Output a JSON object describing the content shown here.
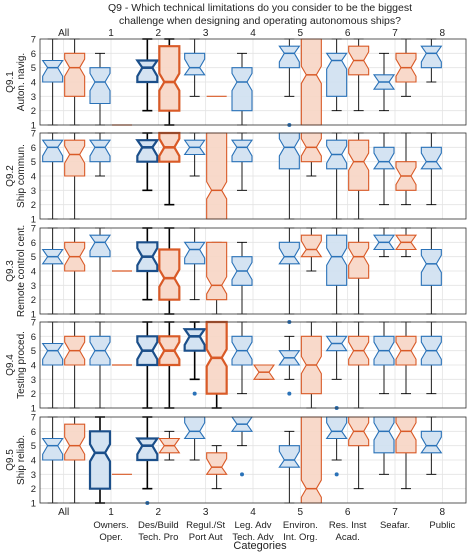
{
  "chart_data": {
    "type": "boxplot",
    "title": "Q9 - Which technical limitations do you consider to be the biggest\nchallenge when designing and operating autonomous ships?",
    "xlabel": "Categories",
    "ylim": [
      1,
      7
    ],
    "yticks": [
      1,
      2,
      3,
      4,
      5,
      6,
      7
    ],
    "grid": true,
    "categories": [
      {
        "top": "All",
        "num": "",
        "sub1": "",
        "sub2": ""
      },
      {
        "top": "1",
        "num": "1",
        "sub1": "Owners.",
        "sub2": "Oper."
      },
      {
        "top": "2",
        "num": "2",
        "sub1": "Des/Build",
        "sub2": "Tech. Pro"
      },
      {
        "top": "3",
        "num": "3",
        "sub1": "Regul./St",
        "sub2": "Port Aut"
      },
      {
        "top": "4",
        "num": "4",
        "sub1": "Leg. Adv",
        "sub2": "Tech. Adv"
      },
      {
        "top": "5",
        "num": "5",
        "sub1": "Environ.",
        "sub2": "Int. Org."
      },
      {
        "top": "6",
        "num": "6",
        "sub1": "Res. Inst",
        "sub2": "Acad."
      },
      {
        "top": "7",
        "num": "7",
        "sub1": "Seafar.",
        "sub2": ""
      },
      {
        "top": "8",
        "num": "8",
        "sub1": "Public",
        "sub2": ""
      }
    ],
    "series_colors": {
      "blue": "#2a72b8",
      "blue_fill": "#cfe0f1",
      "orange": "#d95a27",
      "orange_fill": "#f7d5c4",
      "dark_blue": "#1b4f8a"
    },
    "panels": [
      {
        "ylabel": "Q9.1\nAuton. navig.",
        "boxes": [
          {
            "cat": 0,
            "side": "blue",
            "q1": 4,
            "med": 5,
            "q3": 5.5,
            "lo": 1,
            "hi": 7,
            "out": []
          },
          {
            "cat": 0,
            "side": "orange",
            "q1": 3,
            "med": 5,
            "q3": 6,
            "lo": 1,
            "hi": 7,
            "out": []
          },
          {
            "cat": 1,
            "side": "blue",
            "q1": 2.5,
            "med": 4,
            "q3": 5,
            "lo": 1,
            "hi": 6,
            "out": []
          },
          {
            "cat": 1,
            "side": "orange",
            "line": 1
          },
          {
            "cat": 2,
            "side": "blue",
            "q1": 4,
            "med": 5,
            "q3": 5.5,
            "lo": 2,
            "hi": 7,
            "out": [],
            "bold": true
          },
          {
            "cat": 2,
            "side": "orange",
            "q1": 2,
            "med": 4,
            "q3": 6.5,
            "lo": 1,
            "hi": 7,
            "out": [],
            "bold": true
          },
          {
            "cat": 3,
            "side": "blue",
            "q1": 4.5,
            "med": 5,
            "q3": 6,
            "lo": 3,
            "hi": 7,
            "out": []
          },
          {
            "cat": 3,
            "side": "orange",
            "line": 3
          },
          {
            "cat": 4,
            "side": "blue",
            "q1": 2,
            "med": 4,
            "q3": 5,
            "lo": 1,
            "hi": 6,
            "out": []
          },
          {
            "cat": 5,
            "side": "blue",
            "q1": 5,
            "med": 6,
            "q3": 6.5,
            "lo": 3,
            "hi": 7,
            "out": [
              1
            ]
          },
          {
            "cat": 5,
            "side": "orange",
            "q1": 1,
            "med": 4.5,
            "q3": 7,
            "lo": 1,
            "hi": 7,
            "out": []
          },
          {
            "cat": 6,
            "side": "blue",
            "q1": 3,
            "med": 5.5,
            "q3": 6,
            "lo": 2,
            "hi": 7,
            "out": []
          },
          {
            "cat": 6,
            "side": "orange",
            "q1": 4.5,
            "med": 5.5,
            "q3": 6.5,
            "lo": 2,
            "hi": 7,
            "out": []
          },
          {
            "cat": 7,
            "side": "blue",
            "q1": 3.5,
            "med": 4,
            "q3": 4.5,
            "lo": 2,
            "hi": 6,
            "out": []
          },
          {
            "cat": 7,
            "side": "orange",
            "q1": 4,
            "med": 5,
            "q3": 6,
            "lo": 3,
            "hi": 7,
            "out": []
          },
          {
            "cat": 8,
            "side": "blue",
            "q1": 5,
            "med": 6,
            "q3": 6.5,
            "lo": 4,
            "hi": 7,
            "out": []
          }
        ]
      },
      {
        "ylabel": "Q9.2\nShip commun.",
        "boxes": [
          {
            "cat": 0,
            "side": "blue",
            "q1": 5,
            "med": 6,
            "q3": 6.5,
            "lo": 1,
            "hi": 7,
            "out": []
          },
          {
            "cat": 0,
            "side": "orange",
            "q1": 4,
            "med": 5.5,
            "q3": 6.5,
            "lo": 1,
            "hi": 7,
            "out": []
          },
          {
            "cat": 1,
            "side": "blue",
            "q1": 5,
            "med": 6,
            "q3": 6.5,
            "lo": 4,
            "hi": 7,
            "out": []
          },
          {
            "cat": 2,
            "side": "blue",
            "q1": 5,
            "med": 6,
            "q3": 6.5,
            "lo": 3,
            "hi": 7,
            "out": [],
            "bold": true
          },
          {
            "cat": 2,
            "side": "orange",
            "q1": 5,
            "med": 6,
            "q3": 7,
            "lo": 2,
            "hi": 7,
            "out": [],
            "bold": true
          },
          {
            "cat": 3,
            "side": "blue",
            "q1": 5.5,
            "med": 6,
            "q3": 6.5,
            "lo": 4,
            "hi": 7,
            "out": []
          },
          {
            "cat": 3,
            "side": "orange",
            "q1": 1,
            "med": 3,
            "q3": 7,
            "lo": 1,
            "hi": 7,
            "out": []
          },
          {
            "cat": 4,
            "side": "blue",
            "q1": 5,
            "med": 6,
            "q3": 6.5,
            "lo": 3,
            "hi": 7,
            "out": []
          },
          {
            "cat": 5,
            "side": "blue",
            "q1": 4.5,
            "med": 6,
            "q3": 7,
            "lo": 1,
            "hi": 7,
            "out": []
          },
          {
            "cat": 5,
            "side": "orange",
            "q1": 5,
            "med": 6,
            "q3": 7,
            "lo": 4,
            "hi": 7,
            "out": []
          },
          {
            "cat": 6,
            "side": "blue",
            "q1": 4.5,
            "med": 5.5,
            "q3": 6.5,
            "lo": 1,
            "hi": 7,
            "out": []
          },
          {
            "cat": 6,
            "side": "orange",
            "q1": 3,
            "med": 5,
            "q3": 6.5,
            "lo": 1,
            "hi": 7,
            "out": []
          },
          {
            "cat": 7,
            "side": "blue",
            "q1": 4.5,
            "med": 5,
            "q3": 6,
            "lo": 2,
            "hi": 7,
            "out": []
          },
          {
            "cat": 7,
            "side": "orange",
            "q1": 3,
            "med": 4,
            "q3": 5,
            "lo": 2,
            "hi": 7,
            "out": []
          },
          {
            "cat": 8,
            "side": "blue",
            "q1": 4.5,
            "med": 5,
            "q3": 6,
            "lo": 2,
            "hi": 7,
            "out": []
          }
        ]
      },
      {
        "ylabel": "Q9.3\nRemote control cent.",
        "boxes": [
          {
            "cat": 0,
            "side": "blue",
            "q1": 4.5,
            "med": 5,
            "q3": 5.5,
            "lo": 1,
            "hi": 7,
            "out": []
          },
          {
            "cat": 0,
            "side": "orange",
            "q1": 4,
            "med": 5,
            "q3": 6,
            "lo": 1,
            "hi": 7,
            "out": []
          },
          {
            "cat": 1,
            "side": "blue",
            "q1": 5,
            "med": 6,
            "q3": 6.5,
            "lo": 1,
            "hi": 7,
            "out": []
          },
          {
            "cat": 1,
            "side": "orange",
            "line": 4
          },
          {
            "cat": 2,
            "side": "blue",
            "q1": 4,
            "med": 5,
            "q3": 6,
            "lo": 2,
            "hi": 7,
            "out": [],
            "bold": true
          },
          {
            "cat": 2,
            "side": "orange",
            "q1": 2,
            "med": 3.5,
            "q3": 5.5,
            "lo": 1,
            "hi": 7,
            "out": [],
            "bold": true
          },
          {
            "cat": 3,
            "side": "blue",
            "q1": 4.5,
            "med": 5.5,
            "q3": 6,
            "lo": 2,
            "hi": 7,
            "out": []
          },
          {
            "cat": 3,
            "side": "orange",
            "q1": 2,
            "med": 3,
            "q3": 6,
            "lo": 1,
            "hi": 6,
            "out": []
          },
          {
            "cat": 4,
            "side": "blue",
            "q1": 3,
            "med": 4,
            "q3": 5,
            "lo": 1,
            "hi": 6,
            "out": []
          },
          {
            "cat": 5,
            "side": "blue",
            "q1": 4.5,
            "med": 5,
            "q3": 6,
            "lo": 1,
            "hi": 7,
            "out": []
          },
          {
            "cat": 5,
            "side": "orange",
            "q1": 5,
            "med": 5.5,
            "q3": 6.5,
            "lo": 4,
            "hi": 7,
            "out": []
          },
          {
            "cat": 6,
            "side": "blue",
            "q1": 3,
            "med": 5,
            "q3": 6.5,
            "lo": 1,
            "hi": 7,
            "out": []
          },
          {
            "cat": 6,
            "side": "orange",
            "q1": 3.5,
            "med": 5,
            "q3": 6,
            "lo": 1,
            "hi": 7,
            "out": []
          },
          {
            "cat": 7,
            "side": "blue",
            "q1": 5.5,
            "med": 6,
            "q3": 6.5,
            "lo": 5,
            "hi": 7,
            "out": []
          },
          {
            "cat": 7,
            "side": "orange",
            "q1": 5.5,
            "med": 6,
            "q3": 6.5,
            "lo": 5,
            "hi": 7,
            "out": []
          },
          {
            "cat": 8,
            "side": "blue",
            "q1": 3,
            "med": 4.5,
            "q3": 5.5,
            "lo": 1,
            "hi": 7,
            "out": []
          }
        ]
      },
      {
        "ylabel": "Q9.4\nTesting proced.",
        "boxes": [
          {
            "cat": 0,
            "side": "blue",
            "q1": 4,
            "med": 5,
            "q3": 5.5,
            "lo": 1,
            "hi": 7,
            "out": []
          },
          {
            "cat": 0,
            "side": "orange",
            "q1": 4,
            "med": 5,
            "q3": 6,
            "lo": 1,
            "hi": 7,
            "out": []
          },
          {
            "cat": 1,
            "side": "blue",
            "q1": 4,
            "med": 5,
            "q3": 6,
            "lo": 1,
            "hi": 7,
            "out": []
          },
          {
            "cat": 1,
            "side": "orange",
            "line": 4
          },
          {
            "cat": 2,
            "side": "blue",
            "q1": 4,
            "med": 5,
            "q3": 6,
            "lo": 1,
            "hi": 7,
            "out": [],
            "bold": true
          },
          {
            "cat": 2,
            "side": "orange",
            "q1": 4,
            "med": 5,
            "q3": 6,
            "lo": 1,
            "hi": 7,
            "out": [],
            "bold": true
          },
          {
            "cat": 3,
            "side": "blue",
            "q1": 5,
            "med": 6,
            "q3": 6.5,
            "lo": 3,
            "hi": 7,
            "out": [
              2
            ],
            "bold": true
          },
          {
            "cat": 3,
            "side": "orange",
            "q1": 2,
            "med": 4.5,
            "q3": 7,
            "lo": 1,
            "hi": 7,
            "out": [],
            "bold": true
          },
          {
            "cat": 4,
            "side": "blue",
            "q1": 4,
            "med": 5,
            "q3": 6,
            "lo": 2,
            "hi": 7,
            "out": []
          },
          {
            "cat": 4,
            "side": "orange",
            "q1": 3,
            "med": 3.5,
            "q3": 4,
            "lo": 3,
            "hi": 4,
            "out": []
          },
          {
            "cat": 5,
            "side": "blue",
            "q1": 4,
            "med": 4.5,
            "q3": 5,
            "lo": 3,
            "hi": 6,
            "out": [
              7,
              2
            ]
          },
          {
            "cat": 5,
            "side": "orange",
            "q1": 2,
            "med": 4,
            "q3": 6,
            "lo": 1,
            "hi": 7,
            "out": []
          },
          {
            "cat": 6,
            "side": "blue",
            "q1": 5,
            "med": 5.5,
            "q3": 6,
            "lo": 3,
            "hi": 7,
            "out": [
              1
            ]
          },
          {
            "cat": 6,
            "side": "orange",
            "q1": 4,
            "med": 5,
            "q3": 6,
            "lo": 1,
            "hi": 7,
            "out": []
          },
          {
            "cat": 7,
            "side": "blue",
            "q1": 4,
            "med": 5,
            "q3": 6,
            "lo": 2,
            "hi": 7,
            "out": []
          },
          {
            "cat": 7,
            "side": "orange",
            "q1": 4,
            "med": 5,
            "q3": 6,
            "lo": 2,
            "hi": 7,
            "out": []
          },
          {
            "cat": 8,
            "side": "blue",
            "q1": 4,
            "med": 5,
            "q3": 6,
            "lo": 2,
            "hi": 7,
            "out": []
          }
        ]
      },
      {
        "ylabel": "Q9.5\nShip reliab.",
        "boxes": [
          {
            "cat": 0,
            "side": "blue",
            "q1": 4,
            "med": 5,
            "q3": 5.5,
            "lo": 1,
            "hi": 7,
            "out": []
          },
          {
            "cat": 0,
            "side": "orange",
            "q1": 4,
            "med": 5,
            "q3": 6.5,
            "lo": 1,
            "hi": 7,
            "out": []
          },
          {
            "cat": 1,
            "side": "blue",
            "q1": 2,
            "med": 4.5,
            "q3": 6,
            "lo": 1,
            "hi": 7,
            "out": [],
            "bold": true
          },
          {
            "cat": 1,
            "side": "orange",
            "line": 3
          },
          {
            "cat": 2,
            "side": "blue",
            "q1": 4,
            "med": 5,
            "q3": 5.5,
            "lo": 2,
            "hi": 7,
            "out": [
              1
            ],
            "bold": true
          },
          {
            "cat": 2,
            "side": "orange",
            "q1": 4.5,
            "med": 5,
            "q3": 5.5,
            "lo": 4,
            "hi": 6,
            "out": []
          },
          {
            "cat": 3,
            "side": "blue",
            "q1": 5.5,
            "med": 6,
            "q3": 7,
            "lo": 4,
            "hi": 7,
            "out": []
          },
          {
            "cat": 3,
            "side": "orange",
            "q1": 3,
            "med": 3.5,
            "q3": 4.5,
            "lo": 2,
            "hi": 5,
            "out": []
          },
          {
            "cat": 4,
            "side": "blue",
            "q1": 6,
            "med": 6.5,
            "q3": 7,
            "lo": 5,
            "hi": 7,
            "out": [
              3
            ]
          },
          {
            "cat": 5,
            "side": "blue",
            "q1": 3.5,
            "med": 4,
            "q3": 5,
            "lo": 1,
            "hi": 6,
            "out": []
          },
          {
            "cat": 5,
            "side": "orange",
            "q1": 1,
            "med": 2,
            "q3": 7,
            "lo": 1,
            "hi": 7,
            "out": []
          },
          {
            "cat": 6,
            "side": "blue",
            "q1": 5.5,
            "med": 6,
            "q3": 7,
            "lo": 4,
            "hi": 7,
            "out": [
              3
            ]
          },
          {
            "cat": 6,
            "side": "orange",
            "q1": 5,
            "med": 6,
            "q3": 7,
            "lo": 2,
            "hi": 7,
            "out": []
          },
          {
            "cat": 7,
            "side": "blue",
            "q1": 4.5,
            "med": 6,
            "q3": 7,
            "lo": 3,
            "hi": 7,
            "out": []
          },
          {
            "cat": 7,
            "side": "orange",
            "q1": 4.5,
            "med": 6,
            "q3": 7,
            "lo": 2,
            "hi": 7,
            "out": []
          },
          {
            "cat": 8,
            "side": "blue",
            "q1": 4.5,
            "med": 5,
            "q3": 6,
            "lo": 3,
            "hi": 7,
            "out": []
          }
        ]
      }
    ]
  }
}
